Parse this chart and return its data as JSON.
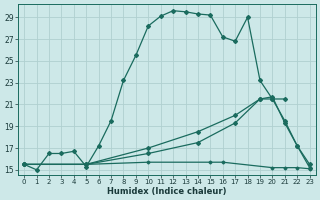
{
  "xlabel": "Humidex (Indice chaleur)",
  "xlim": [
    -0.5,
    23.5
  ],
  "ylim": [
    14.5,
    30.2
  ],
  "yticks": [
    15,
    17,
    19,
    21,
    23,
    25,
    27,
    29
  ],
  "xticks": [
    0,
    1,
    2,
    3,
    4,
    5,
    6,
    7,
    8,
    9,
    10,
    11,
    12,
    13,
    14,
    15,
    16,
    17,
    18,
    19,
    20,
    21,
    22,
    23
  ],
  "bg_color": "#cde8e8",
  "line_color": "#1a6b5e",
  "grid_color": "#b0d0d0",
  "line1_x": [
    0,
    1,
    2,
    3,
    4,
    5,
    6,
    7,
    8,
    9,
    10,
    11,
    12,
    13,
    14,
    15,
    16,
    17,
    18,
    19,
    20,
    21,
    22,
    23
  ],
  "line1_y": [
    15.5,
    15.0,
    16.5,
    16.5,
    16.7,
    15.3,
    17.2,
    19.5,
    23.2,
    25.5,
    28.2,
    29.1,
    29.6,
    29.5,
    29.3,
    29.2,
    27.2,
    26.8,
    29.0,
    23.2,
    21.5,
    19.5,
    17.2,
    15.5
  ],
  "line2_x": [
    0,
    5,
    10,
    14,
    17,
    19,
    20,
    21,
    22,
    23
  ],
  "line2_y": [
    15.5,
    15.5,
    17.0,
    18.5,
    20.0,
    21.5,
    21.7,
    19.3,
    17.2,
    15.2
  ],
  "line3_x": [
    0,
    5,
    10,
    14,
    17,
    19,
    20,
    21
  ],
  "line3_y": [
    15.5,
    15.5,
    16.5,
    17.5,
    19.3,
    21.5,
    21.5,
    21.5
  ],
  "line4_x": [
    0,
    5,
    10,
    15,
    16,
    20,
    21,
    22,
    23
  ],
  "line4_y": [
    15.5,
    15.5,
    15.7,
    15.7,
    15.7,
    15.2,
    15.2,
    15.2,
    15.1
  ]
}
